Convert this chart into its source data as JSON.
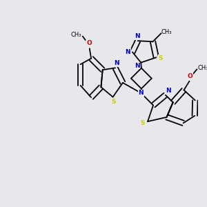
{
  "background_color": "#e8e8ec",
  "bond_color": "#000000",
  "n_color": "#0000cc",
  "s_color": "#cccc00",
  "o_color": "#cc0000",
  "lw": 1.3,
  "figsize": [
    3.0,
    3.0
  ],
  "dpi": 100,
  "xlim": [
    0,
    10
  ],
  "ylim": [
    0,
    10
  ]
}
